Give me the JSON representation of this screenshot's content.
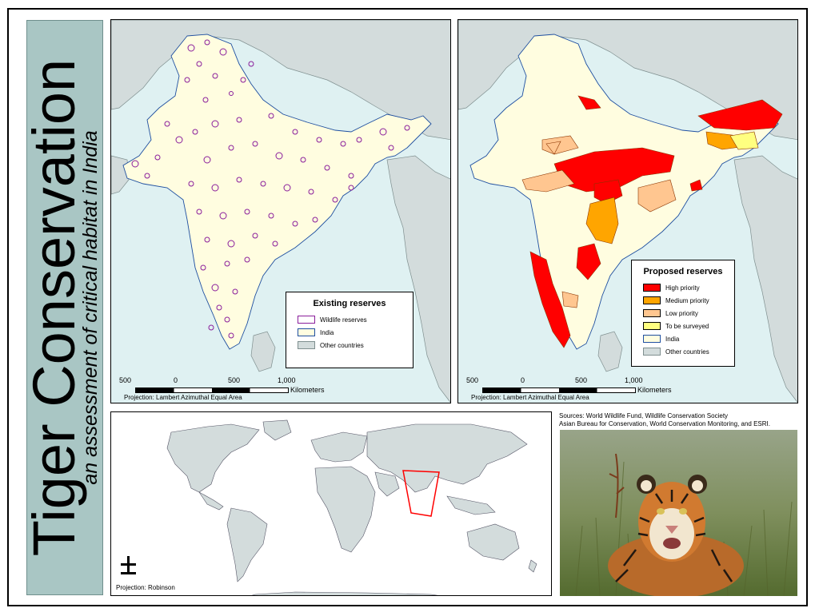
{
  "title": {
    "main": "Tiger Conservation",
    "subtitle": "an assessment of critical habitat in India"
  },
  "existing_map": {
    "legend_title": "Existing reserves",
    "legend_items": [
      {
        "label": "Wildlife reserves",
        "fill": "#ffffff",
        "stroke": "#8a1d9b"
      },
      {
        "label": "India",
        "fill": "#fffde0",
        "stroke": "#1f4fa0"
      },
      {
        "label": "Other countries",
        "fill": "#d3dcdc",
        "stroke": "#7f8f8f"
      }
    ],
    "scale_labels": [
      "500",
      "0",
      "500",
      "1,000"
    ],
    "scale_unit": "Kilometers",
    "projection": "Projection: Lambert Azimuthal Equal Area"
  },
  "proposed_map": {
    "legend_title": "Proposed reserves",
    "legend_items": [
      {
        "label": "High priority",
        "fill": "#ff0000"
      },
      {
        "label": "Medium priority",
        "fill": "#ffa500"
      },
      {
        "label": "Low priority",
        "fill": "#ffc690"
      },
      {
        "label": "To be surveyed",
        "fill": "#ffff80"
      },
      {
        "label": "India",
        "fill": "#fffde0"
      },
      {
        "label": "Other countries",
        "fill": "#d3dcdc"
      }
    ],
    "scale_labels": [
      "500",
      "0",
      "500",
      "1,000"
    ],
    "scale_unit": "Kilometers",
    "projection": "Projection: Lambert Azimuthal Equal Area"
  },
  "world_map": {
    "projection": "Projection: Robinson"
  },
  "sources": {
    "line1": "Sources: World Wildlife Fund, Wildlife Conservation Society",
    "line2": "Asian Bureau for Conservation, World Conservation Monitoring, and ESRI."
  },
  "colors": {
    "india": "#fffde0",
    "other_countries": "#d3dcdc",
    "ocean": "#dff1f2",
    "reserve_outline": "#8a1d9b",
    "high": "#ff0000",
    "medium": "#ffa500",
    "low": "#ffc690",
    "survey": "#ffff80",
    "frame_box": "#ff0000",
    "title_band": "#a9c6c4"
  }
}
